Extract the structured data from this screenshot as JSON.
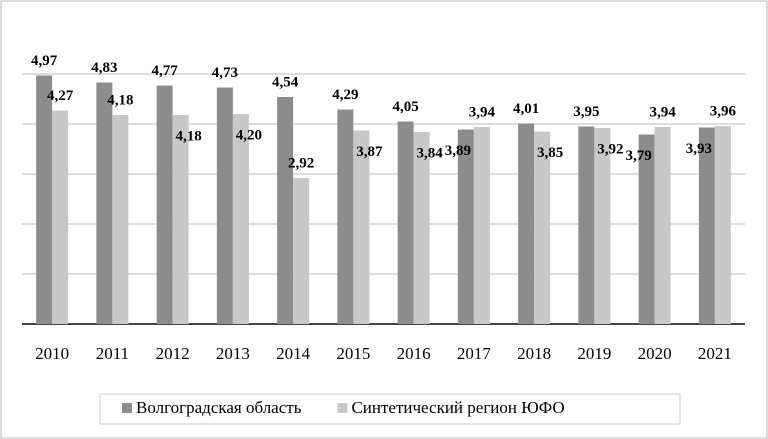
{
  "chart_data": {
    "type": "bar",
    "categories": [
      "2010",
      "2011",
      "2012",
      "2013",
      "2014",
      "2015",
      "2016",
      "2017",
      "2018",
      "2019",
      "2020",
      "2021"
    ],
    "series": [
      {
        "name": "Волгоградская область",
        "color": "#8c8c8c",
        "values": [
          4.97,
          4.83,
          4.77,
          4.73,
          4.54,
          4.29,
          4.05,
          3.89,
          4.01,
          3.95,
          3.79,
          3.93
        ],
        "value_labels": [
          "4,97",
          "4,83",
          "4,77",
          "4,73",
          "4,54",
          "4,29",
          "4,05",
          "3,89",
          "4,01",
          "3,95",
          "3,79",
          "3,93"
        ]
      },
      {
        "name": "Синтетический регион ЮФО",
        "color": "#c8c8c8",
        "values": [
          4.27,
          4.18,
          4.18,
          4.2,
          2.92,
          3.87,
          3.84,
          3.94,
          3.85,
          3.92,
          3.94,
          3.96
        ],
        "value_labels": [
          "4,27",
          "4,18",
          "4,18",
          "4,20",
          "2,92",
          "3,87",
          "3,84",
          "3,94",
          "3,85",
          "3,92",
          "3,94",
          "3,96"
        ]
      }
    ],
    "ylim": [
      0,
      6
    ],
    "yticks": [
      0,
      1,
      2,
      3,
      4,
      5
    ],
    "grid": true,
    "legend": "bottom"
  }
}
